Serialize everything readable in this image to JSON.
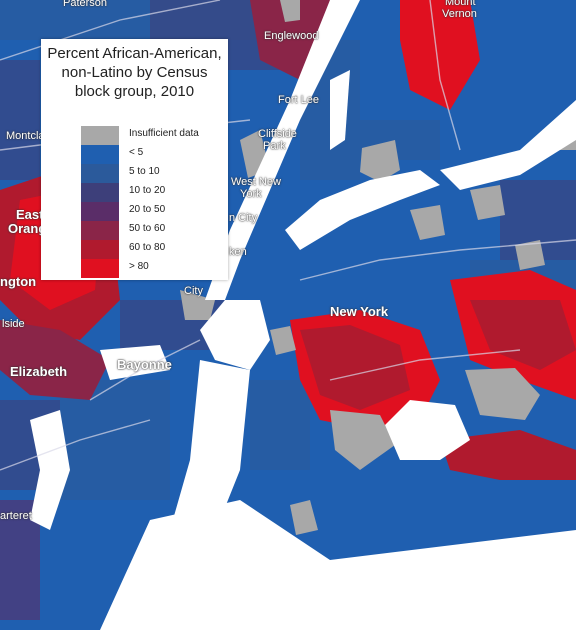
{
  "map": {
    "colors": {
      "water": "#ffffff",
      "park": "#a8a8a8",
      "road": "#d8d8e8"
    }
  },
  "legend": {
    "title_lines": [
      "Percent African-American,",
      "non-Latino by Census",
      "block group, 2010"
    ],
    "items": [
      {
        "label": "Insufficient data",
        "color": "#a8a8a8"
      },
      {
        "label": "< 5",
        "color": "#1f5fb0"
      },
      {
        "label": "5 to 10",
        "color": "#2b5a9b"
      },
      {
        "label": "10 to 20",
        "color": "#3d3f7a"
      },
      {
        "label": "20 to 50",
        "color": "#5a2d68"
      },
      {
        "label": "50 to 60",
        "color": "#8a2548"
      },
      {
        "label": "60 to 80",
        "color": "#b01a2e"
      },
      {
        "label": "> 80",
        "color": "#e01020"
      }
    ]
  },
  "places": {
    "paterson": "Paterson",
    "mount_vernon_1": "Mount",
    "mount_vernon_2": "Vernon",
    "englewood": "Englewood",
    "montclair": "Montcla",
    "fort_lee": "Fort Lee",
    "cliffside_park_1": "Cliffside",
    "cliffside_park_2": "Park",
    "west_new_york_1": "West New",
    "west_new_york_2": "York",
    "union_city": "n City",
    "east_orange_1": "East",
    "east_orange_2": "Orange",
    "newark_frag": "ken",
    "irvington_frag": "ngton",
    "jersey_city_frag": "City",
    "hillside_frag": "lside",
    "new_york": "New York",
    "bayonne": "Bayonne",
    "elizabeth": "Elizabeth",
    "carteret_frag": "arteret"
  }
}
